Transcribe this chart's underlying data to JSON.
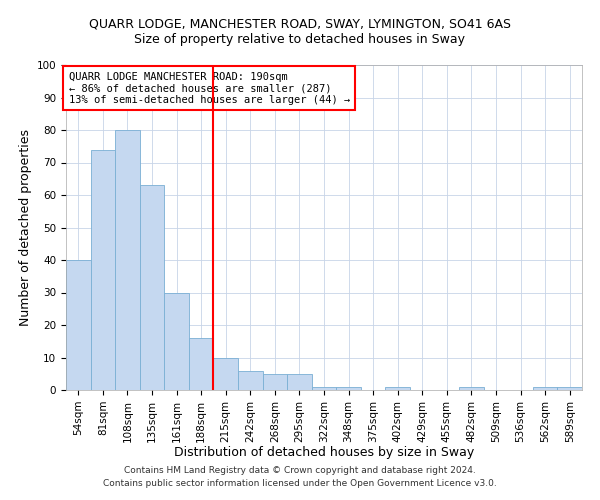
{
  "title": "QUARR LODGE, MANCHESTER ROAD, SWAY, LYMINGTON, SO41 6AS",
  "subtitle": "Size of property relative to detached houses in Sway",
  "xlabel": "Distribution of detached houses by size in Sway",
  "ylabel": "Number of detached properties",
  "categories": [
    "54sqm",
    "81sqm",
    "108sqm",
    "135sqm",
    "161sqm",
    "188sqm",
    "215sqm",
    "242sqm",
    "268sqm",
    "295sqm",
    "322sqm",
    "348sqm",
    "375sqm",
    "402sqm",
    "429sqm",
    "455sqm",
    "482sqm",
    "509sqm",
    "536sqm",
    "562sqm",
    "589sqm"
  ],
  "values": [
    40,
    74,
    80,
    63,
    30,
    16,
    10,
    6,
    5,
    5,
    1,
    1,
    0,
    1,
    0,
    0,
    1,
    0,
    0,
    1,
    1
  ],
  "bar_color": "#c5d8f0",
  "bar_edge_color": "#7aafd4",
  "redline_index": 5,
  "annotation_line1": "QUARR LODGE MANCHESTER ROAD: 190sqm",
  "annotation_line2": "← 86% of detached houses are smaller (287)",
  "annotation_line3": "13% of semi-detached houses are larger (44) →",
  "ylim": [
    0,
    100
  ],
  "yticks": [
    0,
    10,
    20,
    30,
    40,
    50,
    60,
    70,
    80,
    90,
    100
  ],
  "footnote1": "Contains HM Land Registry data © Crown copyright and database right 2024.",
  "footnote2": "Contains public sector information licensed under the Open Government Licence v3.0.",
  "bg_color": "#ffffff",
  "grid_color": "#c8d4e8",
  "title_fontsize": 9,
  "subtitle_fontsize": 9,
  "axis_label_fontsize": 9,
  "tick_fontsize": 7.5,
  "annotation_fontsize": 7.5,
  "footnote_fontsize": 6.5
}
